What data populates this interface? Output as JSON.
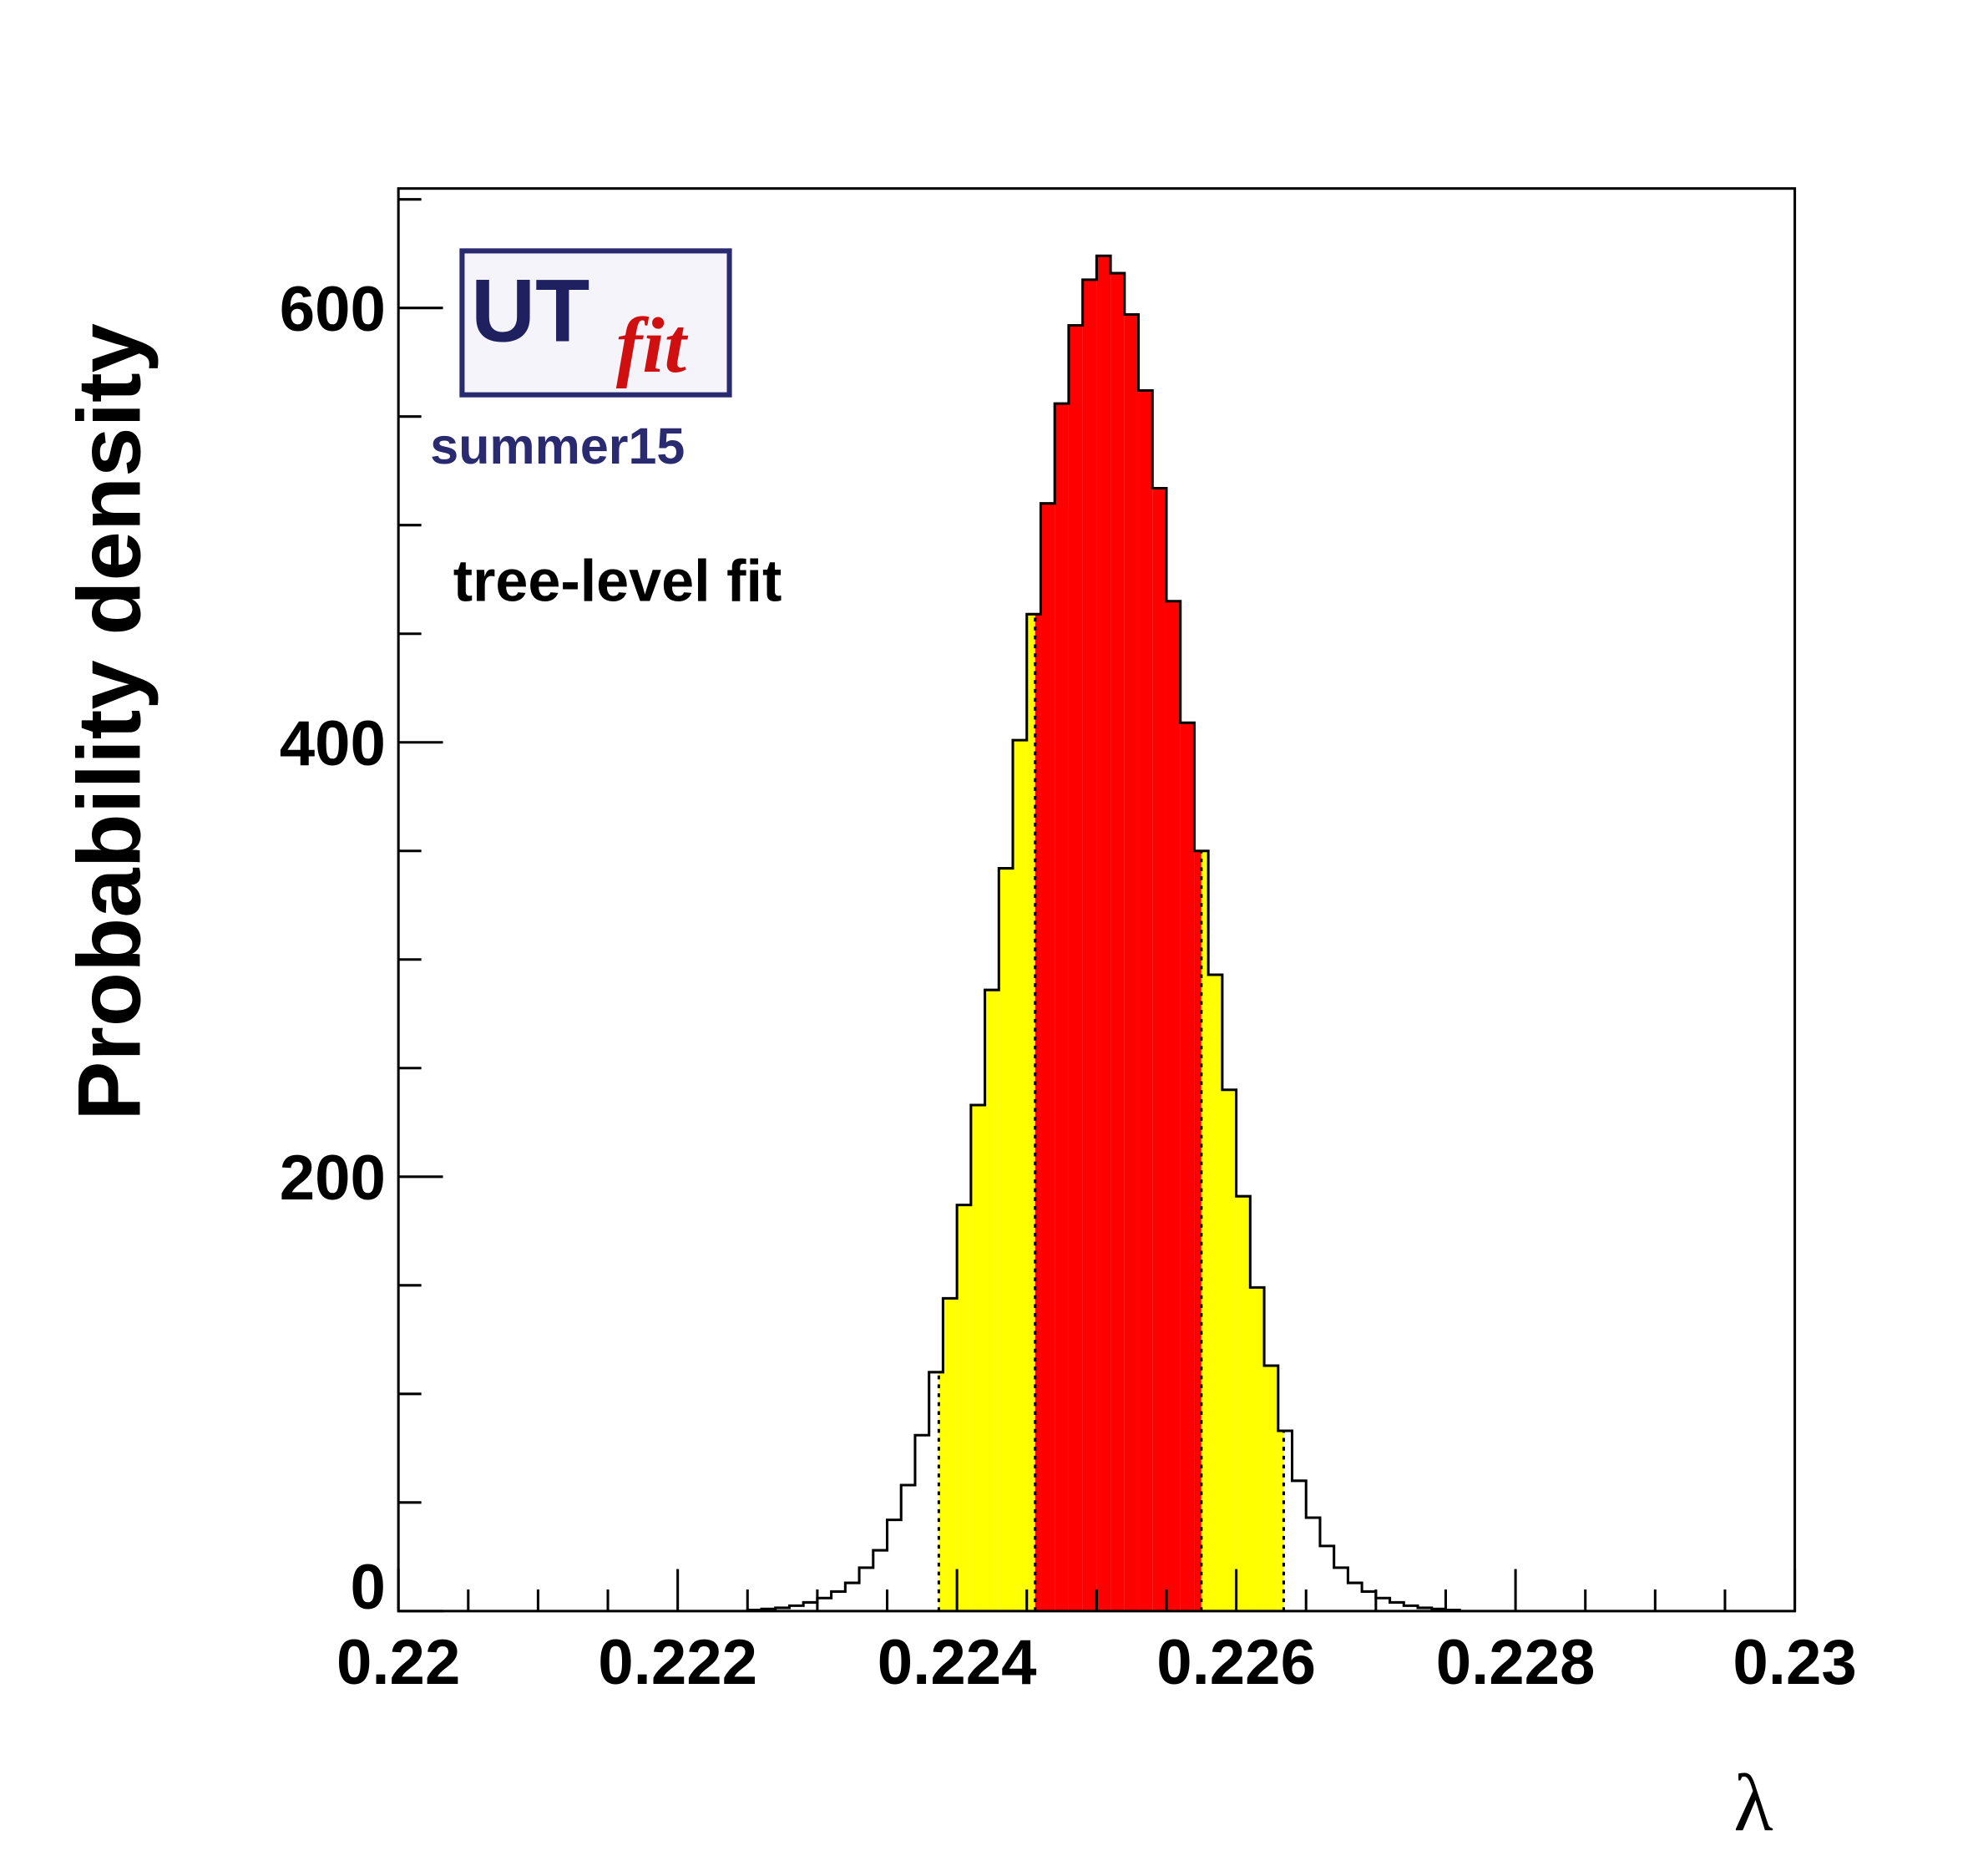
{
  "chart_data": {
    "type": "bar",
    "subtype": "histogram",
    "title": "",
    "xlabel": "λ",
    "ylabel": "Probability density",
    "xlim": [
      0.22,
      0.23
    ],
    "ylim": [
      0,
      655
    ],
    "x_ticks": [
      "0.22",
      "0.222",
      "0.224",
      "0.226",
      "0.228",
      "0.23"
    ],
    "x_tick_values": [
      0.22,
      0.222,
      0.224,
      0.226,
      0.228,
      0.23
    ],
    "y_ticks": [
      "0",
      "200",
      "400",
      "600"
    ],
    "y_tick_values": [
      0,
      200,
      400,
      600
    ],
    "grid": false,
    "bin_start": 0.2225,
    "bin_width": 0.0001,
    "values": [
      0.5,
      1,
      1.5,
      2.5,
      4,
      6,
      9,
      13,
      20,
      28,
      42,
      58,
      81,
      110,
      144,
      187,
      233,
      286,
      342,
      401,
      459,
      510,
      556,
      592,
      613,
      624,
      616,
      597,
      562,
      517,
      465,
      409,
      350,
      293,
      240,
      191,
      149,
      113,
      83,
      60,
      43,
      30,
      20,
      13,
      9,
      6,
      4,
      2.5,
      1.5,
      1,
      0.5
    ],
    "intervals": {
      "inner_68": {
        "range": [
          0.22456,
          0.22575
        ],
        "color": "#ff0000"
      },
      "outer_95": {
        "range": [
          0.22387,
          0.22634
        ],
        "color": "#ffff00"
      }
    },
    "annotations": [
      "summer15",
      "tree-level fit"
    ],
    "logo": {
      "text_main": "UT",
      "text_italic": "fit",
      "main_color": "#1f2060",
      "italic_color": "#d01010"
    }
  }
}
